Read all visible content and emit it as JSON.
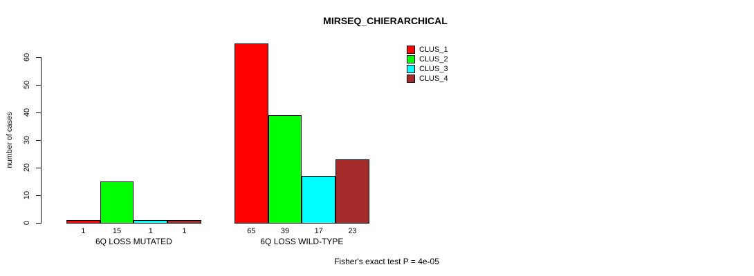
{
  "chart_data": {
    "type": "bar",
    "title": "MIRSEQ_CHIERARCHICAL",
    "ylabel": "number of cases",
    "xlabel": "",
    "ylim": [
      0,
      60
    ],
    "yticks": [
      0,
      10,
      20,
      30,
      40,
      50,
      60
    ],
    "categories": [
      "6Q LOSS MUTATED",
      "6Q LOSS WILD-TYPE"
    ],
    "series": [
      {
        "name": "CLUS_1",
        "color": "#ff0000",
        "values": [
          1,
          65
        ]
      },
      {
        "name": "CLUS_2",
        "color": "#00ff00",
        "values": [
          15,
          39
        ]
      },
      {
        "name": "CLUS_3",
        "color": "#00ffff",
        "values": [
          1,
          17
        ]
      },
      {
        "name": "CLUS_4",
        "color": "#a52a2a",
        "values": [
          1,
          23
        ]
      }
    ],
    "bar_value_labels": [
      [
        "1",
        "15",
        "1",
        "1"
      ],
      [
        "65",
        "39",
        "17",
        "23"
      ]
    ],
    "legend_position": "top-right",
    "grid": false,
    "annotation": "Fisher's exact test P = 4e-05"
  }
}
